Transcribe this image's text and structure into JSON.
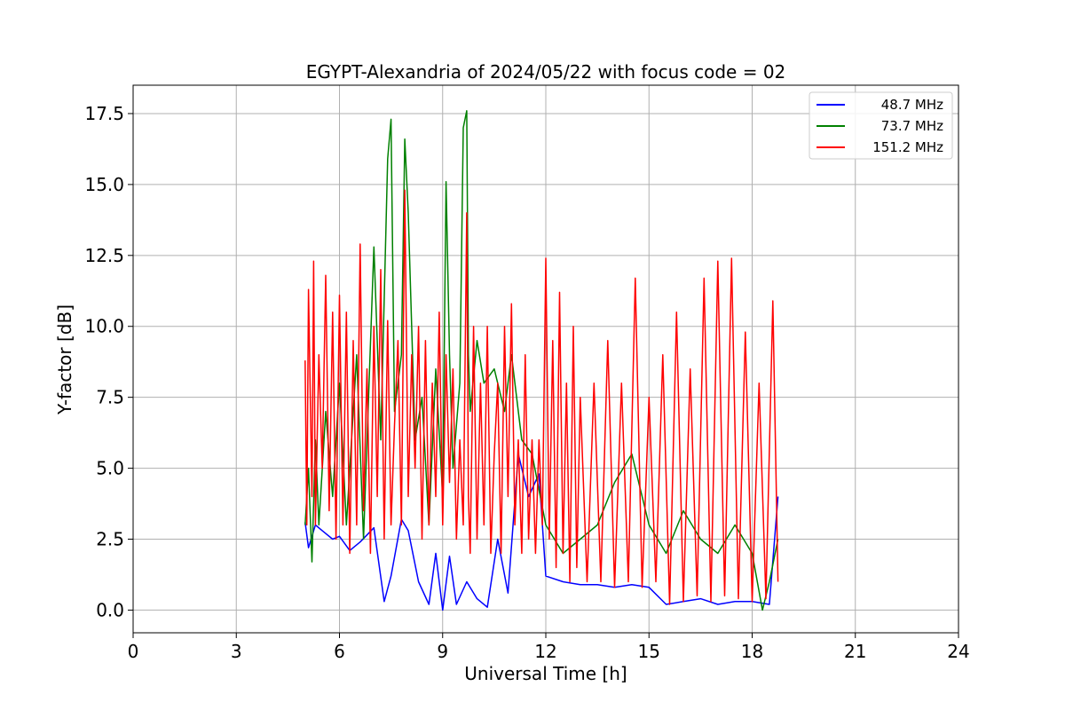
{
  "chart_data": {
    "type": "line",
    "title": "EGYPT-Alexandria of 2024/05/22 with focus code = 02",
    "xlabel": "Universal Time [h]",
    "ylabel": "Y-factor [dB]",
    "xlim": [
      0,
      24
    ],
    "ylim": [
      -0.8,
      18.5
    ],
    "xticks": [
      0,
      3,
      6,
      9,
      12,
      15,
      18,
      21,
      24
    ],
    "xtick_labels": [
      "0",
      "3",
      "6",
      "9",
      "12",
      "15",
      "18",
      "21",
      "24"
    ],
    "yticks": [
      0.0,
      2.5,
      5.0,
      7.5,
      10.0,
      12.5,
      15.0,
      17.5
    ],
    "ytick_labels": [
      "0.0",
      "2.5",
      "5.0",
      "7.5",
      "10.0",
      "12.5",
      "15.0",
      "17.5"
    ],
    "grid": true,
    "legend_position": "top-right",
    "series": [
      {
        "name": "48.7 MHz",
        "color": "#0000ff",
        "x": [
          5.0,
          5.1,
          5.3,
          5.5,
          5.8,
          6.0,
          6.3,
          6.6,
          7.0,
          7.3,
          7.5,
          7.8,
          8.0,
          8.3,
          8.6,
          8.8,
          9.0,
          9.2,
          9.4,
          9.7,
          10.0,
          10.3,
          10.6,
          10.9,
          11.2,
          11.5,
          11.8,
          12.0,
          12.5,
          13.0,
          13.5,
          14.0,
          14.5,
          15.0,
          15.5,
          16.0,
          16.5,
          17.0,
          17.5,
          18.0,
          18.5,
          18.75
        ],
        "y": [
          3.1,
          2.2,
          3.0,
          2.8,
          2.5,
          2.6,
          2.1,
          2.4,
          2.9,
          0.3,
          1.2,
          3.2,
          2.8,
          1.0,
          0.2,
          2.0,
          0.0,
          1.9,
          0.2,
          1.0,
          0.4,
          0.1,
          2.5,
          0.6,
          5.5,
          4.0,
          4.8,
          1.2,
          1.0,
          0.9,
          0.9,
          0.8,
          0.9,
          0.8,
          0.2,
          0.3,
          0.4,
          0.2,
          0.3,
          0.3,
          0.2,
          4.0
        ]
      },
      {
        "name": "73.7 MHz",
        "color": "#008000",
        "x": [
          5.0,
          5.1,
          5.2,
          5.3,
          5.4,
          5.6,
          5.8,
          6.0,
          6.2,
          6.5,
          6.7,
          7.0,
          7.2,
          7.4,
          7.5,
          7.6,
          7.8,
          7.9,
          8.0,
          8.2,
          8.4,
          8.6,
          8.8,
          9.0,
          9.1,
          9.2,
          9.3,
          9.5,
          9.6,
          9.7,
          9.75,
          9.8,
          10.0,
          10.2,
          10.5,
          10.8,
          11.0,
          11.3,
          11.6,
          12.0,
          12.5,
          13.0,
          13.5,
          14.0,
          14.5,
          15.0,
          15.5,
          16.0,
          16.5,
          17.0,
          17.5,
          18.0,
          18.3,
          18.5,
          18.75
        ],
        "y": [
          3.0,
          5.0,
          1.7,
          6.0,
          3.0,
          7.0,
          4.0,
          8.0,
          3.0,
          9.0,
          2.5,
          12.8,
          6.0,
          15.9,
          17.3,
          7.0,
          9.0,
          16.6,
          14.0,
          6.0,
          7.5,
          3.0,
          8.5,
          4.0,
          15.1,
          9.0,
          5.0,
          8.0,
          17.0,
          17.6,
          9.0,
          7.0,
          9.5,
          8.0,
          8.5,
          7.0,
          9.0,
          6.0,
          5.5,
          3.0,
          2.0,
          2.5,
          3.0,
          4.5,
          5.5,
          3.0,
          2.0,
          3.5,
          2.5,
          2.0,
          3.0,
          2.0,
          0.0,
          1.0,
          2.5
        ]
      },
      {
        "name": "151.2 MHz",
        "color": "#ff0000",
        "x": [
          5.0,
          5.05,
          5.1,
          5.2,
          5.25,
          5.3,
          5.4,
          5.5,
          5.6,
          5.7,
          5.8,
          5.9,
          6.0,
          6.1,
          6.2,
          6.3,
          6.4,
          6.5,
          6.6,
          6.7,
          6.8,
          6.9,
          7.0,
          7.1,
          7.2,
          7.3,
          7.4,
          7.5,
          7.6,
          7.7,
          7.8,
          7.9,
          8.0,
          8.1,
          8.2,
          8.3,
          8.4,
          8.5,
          8.6,
          8.7,
          8.8,
          8.9,
          9.0,
          9.1,
          9.2,
          9.3,
          9.4,
          9.5,
          9.6,
          9.7,
          9.75,
          9.8,
          9.9,
          10.0,
          10.1,
          10.2,
          10.3,
          10.4,
          10.5,
          10.6,
          10.7,
          10.8,
          10.9,
          11.0,
          11.1,
          11.2,
          11.3,
          11.4,
          11.5,
          11.6,
          11.7,
          11.8,
          11.9,
          12.0,
          12.1,
          12.2,
          12.3,
          12.4,
          12.5,
          12.6,
          12.7,
          12.8,
          12.9,
          13.0,
          13.2,
          13.4,
          13.6,
          13.8,
          14.0,
          14.2,
          14.4,
          14.6,
          14.8,
          15.0,
          15.2,
          15.4,
          15.6,
          15.8,
          16.0,
          16.2,
          16.4,
          16.6,
          16.8,
          17.0,
          17.2,
          17.4,
          17.6,
          17.8,
          18.0,
          18.2,
          18.4,
          18.6,
          18.75
        ],
        "y": [
          8.8,
          3.0,
          11.3,
          4.0,
          12.3,
          3.0,
          9.0,
          5.0,
          11.8,
          3.5,
          10.5,
          2.5,
          11.1,
          3.0,
          10.5,
          2.0,
          9.5,
          3.0,
          12.9,
          3.5,
          8.5,
          2.0,
          10.0,
          4.0,
          12.0,
          2.5,
          10.2,
          3.0,
          6.5,
          9.5,
          3.0,
          14.8,
          4.0,
          9.0,
          5.0,
          10.0,
          2.5,
          9.5,
          3.0,
          8.0,
          4.0,
          10.5,
          3.0,
          9.0,
          4.5,
          8.5,
          2.5,
          6.0,
          3.0,
          14.0,
          4.0,
          2.0,
          10.0,
          2.5,
          8.0,
          3.0,
          10.0,
          2.0,
          5.5,
          8.0,
          2.0,
          10.0,
          4.0,
          10.8,
          3.0,
          6.0,
          2.0,
          9.0,
          2.5,
          6.0,
          2.0,
          6.0,
          3.0,
          12.4,
          2.5,
          9.5,
          1.5,
          11.2,
          2.0,
          8.0,
          1.0,
          10.0,
          1.5,
          7.5,
          1.0,
          8.0,
          1.0,
          9.5,
          0.8,
          8.0,
          1.0,
          11.7,
          0.8,
          7.5,
          1.0,
          9.0,
          0.2,
          10.5,
          0.3,
          8.5,
          0.5,
          11.7,
          0.3,
          12.3,
          0.5,
          12.4,
          0.4,
          9.8,
          0.3,
          8.0,
          0.4,
          10.9,
          1.0
        ]
      }
    ]
  }
}
